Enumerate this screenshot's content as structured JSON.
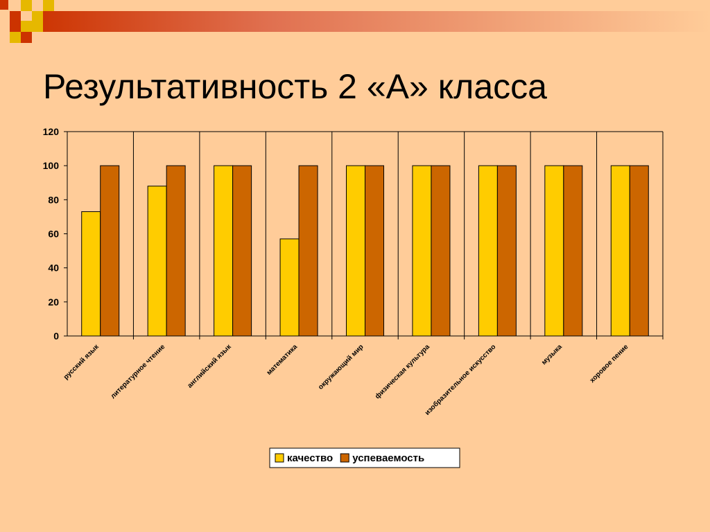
{
  "slide": {
    "title": "Результативность 2 «А» класса"
  },
  "colors": {
    "background": "#FFCC99",
    "accent_dark": "#CC3300",
    "accent_yellow": "#E6B800"
  },
  "chart_data": {
    "type": "bar",
    "categories": [
      "русский язык",
      "литературное чтение",
      "английский язык",
      "математика",
      "окружающий мир",
      "физическая культура",
      "изобразительное искусство",
      "музыка",
      "хоровое пение"
    ],
    "series": [
      {
        "name": "качество",
        "color": "#FFCC00",
        "values": [
          73,
          88,
          100,
          57,
          100,
          100,
          100,
          100,
          100
        ]
      },
      {
        "name": "успеваемость",
        "color": "#CC6600",
        "values": [
          100,
          100,
          100,
          100,
          100,
          100,
          100,
          100,
          100
        ]
      }
    ],
    "ylim": [
      0,
      120
    ],
    "yticks": [
      0,
      20,
      40,
      60,
      80,
      100,
      120
    ],
    "grid": "vertical category lines",
    "legend": "bottom-center",
    "xlabel": "",
    "ylabel": ""
  }
}
